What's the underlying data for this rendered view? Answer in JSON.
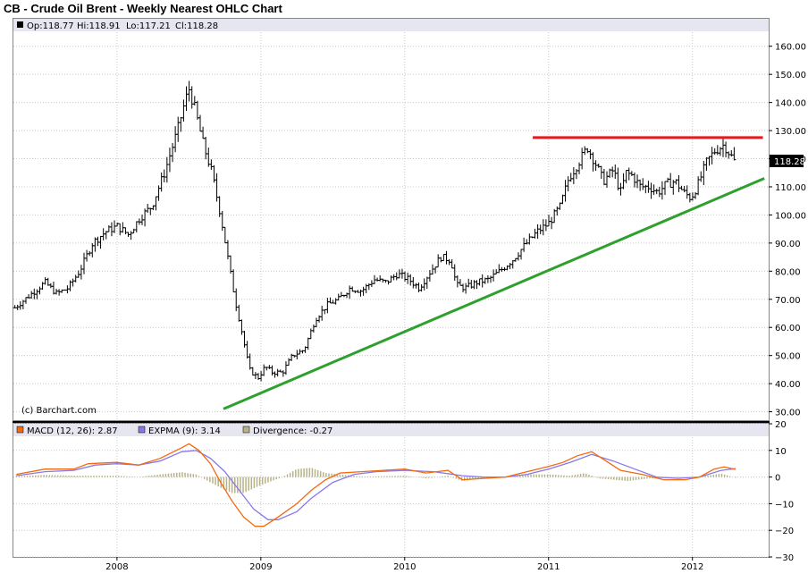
{
  "title": "CB - Crude Oil Brent - Weekly Nearest OHLC Chart",
  "colors": {
    "price_bar": "#000000",
    "resistance": "#e8191d",
    "support": "#2ea02e",
    "macd": "#f26a10",
    "expma": "#8878e8",
    "divergence": "#b7b287",
    "legend_bg": "#e6e6f0",
    "grid": "#c8c8c8"
  },
  "chart_data": [
    {
      "type": "ohlc",
      "legend": {
        "op_label": "Op:118.77",
        "hi_label": "Hi:118.91",
        "lo_label": "Lo:117.21",
        "cl_label": "Cl:118.28"
      },
      "last_price_label": "118.28",
      "watermark": "(c) Barchart.com",
      "x_tick_labels": [
        "2008",
        "2009",
        "2010",
        "2011",
        "2012"
      ],
      "x_range": [
        2007.28,
        2012.53
      ],
      "y_range": [
        27,
        165
      ],
      "y_tick_labels": [
        "160.00",
        "150.00",
        "140.00",
        "130.00",
        "120.00",
        "110.00",
        "100.00",
        "90.00",
        "80.00",
        "70.00",
        "60.00",
        "50.00",
        "40.00",
        "30.00"
      ],
      "y_tick_values": [
        160,
        150,
        140,
        130,
        120,
        110,
        100,
        90,
        80,
        70,
        60,
        50,
        40,
        30
      ],
      "close_series": [
        [
          2007.29,
          67
        ],
        [
          2007.36,
          70
        ],
        [
          2007.43,
          73
        ],
        [
          2007.5,
          76
        ],
        [
          2007.58,
          72
        ],
        [
          2007.66,
          74
        ],
        [
          2007.74,
          80
        ],
        [
          2007.83,
          90
        ],
        [
          2007.92,
          94
        ],
        [
          2008.0,
          96
        ],
        [
          2008.08,
          93
        ],
        [
          2008.16,
          99
        ],
        [
          2008.24,
          103
        ],
        [
          2008.33,
          115
        ],
        [
          2008.42,
          130
        ],
        [
          2008.46,
          138
        ],
        [
          2008.5,
          145
        ],
        [
          2008.54,
          138
        ],
        [
          2008.6,
          125
        ],
        [
          2008.66,
          115
        ],
        [
          2008.72,
          100
        ],
        [
          2008.76,
          88
        ],
        [
          2008.82,
          70
        ],
        [
          2008.87,
          58
        ],
        [
          2008.92,
          45
        ],
        [
          2008.98,
          42
        ],
        [
          2009.03,
          46
        ],
        [
          2009.08,
          44
        ],
        [
          2009.15,
          44
        ],
        [
          2009.22,
          50
        ],
        [
          2009.3,
          52
        ],
        [
          2009.38,
          63
        ],
        [
          2009.46,
          68
        ],
        [
          2009.54,
          70
        ],
        [
          2009.62,
          74
        ],
        [
          2009.7,
          73
        ],
        [
          2009.79,
          77
        ],
        [
          2009.87,
          76
        ],
        [
          2009.95,
          79
        ],
        [
          2010.03,
          77
        ],
        [
          2010.1,
          74
        ],
        [
          2010.18,
          80
        ],
        [
          2010.25,
          85
        ],
        [
          2010.32,
          84
        ],
        [
          2010.36,
          75
        ],
        [
          2010.42,
          74
        ],
        [
          2010.5,
          76
        ],
        [
          2010.58,
          77
        ],
        [
          2010.66,
          80
        ],
        [
          2010.75,
          84
        ],
        [
          2010.83,
          89
        ],
        [
          2010.92,
          94
        ],
        [
          2011.0,
          97
        ],
        [
          2011.08,
          103
        ],
        [
          2011.14,
          113
        ],
        [
          2011.2,
          118
        ],
        [
          2011.27,
          124
        ],
        [
          2011.33,
          118
        ],
        [
          2011.38,
          112
        ],
        [
          2011.45,
          116
        ],
        [
          2011.5,
          108
        ],
        [
          2011.54,
          115
        ],
        [
          2011.58,
          114
        ],
        [
          2011.64,
          110
        ],
        [
          2011.7,
          110
        ],
        [
          2011.76,
          108
        ],
        [
          2011.82,
          111
        ],
        [
          2011.88,
          112
        ],
        [
          2011.94,
          108
        ],
        [
          2011.99,
          106
        ],
        [
          2012.04,
          111
        ],
        [
          2012.1,
          119
        ],
        [
          2012.16,
          123
        ],
        [
          2012.22,
          125
        ],
        [
          2012.28,
          120
        ],
        [
          2012.3,
          118.28
        ]
      ],
      "resistance_line": {
        "price": 127.5,
        "from": 2010.89,
        "to": 2012.49
      },
      "support_line": {
        "from": [
          2008.74,
          31
        ],
        "to": [
          2012.5,
          113
        ]
      }
    },
    {
      "type": "line",
      "legend": {
        "macd_label": "MACD (12, 26): 2.87",
        "expma_label": "EXPMA (9): 3.14",
        "div_label": "Divergence: -0.27"
      },
      "y_range": [
        -30,
        20
      ],
      "y_tick_labels": [
        "20",
        "10",
        "0",
        "−10",
        "−20",
        "−30"
      ],
      "y_tick_values": [
        20,
        10,
        0,
        -10,
        -20,
        -30
      ],
      "series": [
        {
          "key": "macd",
          "values": [
            [
              2007.3,
              1
            ],
            [
              2007.5,
              3
            ],
            [
              2007.7,
              3
            ],
            [
              2007.8,
              5
            ],
            [
              2008.0,
              5.5
            ],
            [
              2008.15,
              4.5
            ],
            [
              2008.3,
              7
            ],
            [
              2008.45,
              11
            ],
            [
              2008.5,
              12.5
            ],
            [
              2008.57,
              10
            ],
            [
              2008.65,
              5
            ],
            [
              2008.72,
              -2
            ],
            [
              2008.8,
              -9
            ],
            [
              2008.88,
              -15
            ],
            [
              2008.96,
              -18.5
            ],
            [
              2009.02,
              -18.5
            ],
            [
              2009.12,
              -15
            ],
            [
              2009.25,
              -10
            ],
            [
              2009.35,
              -5
            ],
            [
              2009.45,
              -1
            ],
            [
              2009.55,
              1.5
            ],
            [
              2009.7,
              2
            ],
            [
              2009.85,
              2.5
            ],
            [
              2010.0,
              3
            ],
            [
              2010.15,
              1.5
            ],
            [
              2010.3,
              2.5
            ],
            [
              2010.4,
              -1
            ],
            [
              2010.55,
              -0.5
            ],
            [
              2010.7,
              0
            ],
            [
              2010.85,
              2
            ],
            [
              2011.0,
              4
            ],
            [
              2011.1,
              5.5
            ],
            [
              2011.2,
              8
            ],
            [
              2011.3,
              9.5
            ],
            [
              2011.4,
              6
            ],
            [
              2011.5,
              2.5
            ],
            [
              2011.65,
              1
            ],
            [
              2011.8,
              -1
            ],
            [
              2011.95,
              -1
            ],
            [
              2012.05,
              0
            ],
            [
              2012.15,
              3
            ],
            [
              2012.22,
              3.8
            ],
            [
              2012.3,
              2.87
            ]
          ]
        },
        {
          "key": "expma",
          "values": [
            [
              2007.3,
              0.5
            ],
            [
              2007.5,
              2
            ],
            [
              2007.7,
              2.5
            ],
            [
              2007.85,
              4.5
            ],
            [
              2008.0,
              5
            ],
            [
              2008.15,
              4.5
            ],
            [
              2008.3,
              6
            ],
            [
              2008.45,
              9.5
            ],
            [
              2008.55,
              10
            ],
            [
              2008.65,
              7
            ],
            [
              2008.75,
              2
            ],
            [
              2008.85,
              -5
            ],
            [
              2008.95,
              -12
            ],
            [
              2009.05,
              -16
            ],
            [
              2009.12,
              -16
            ],
            [
              2009.25,
              -13
            ],
            [
              2009.35,
              -8
            ],
            [
              2009.5,
              -2
            ],
            [
              2009.65,
              1
            ],
            [
              2009.8,
              2
            ],
            [
              2010.0,
              2.5
            ],
            [
              2010.2,
              2
            ],
            [
              2010.4,
              0.5
            ],
            [
              2010.55,
              0
            ],
            [
              2010.7,
              0
            ],
            [
              2010.85,
              1
            ],
            [
              2011.0,
              3
            ],
            [
              2011.15,
              5.5
            ],
            [
              2011.3,
              8.5
            ],
            [
              2011.45,
              6
            ],
            [
              2011.6,
              3
            ],
            [
              2011.75,
              0
            ],
            [
              2011.9,
              -0.5
            ],
            [
              2012.05,
              0
            ],
            [
              2012.2,
              2.5
            ],
            [
              2012.3,
              3.14
            ]
          ]
        },
        {
          "key": "divergence",
          "values": [
            [
              2007.3,
              0.3
            ],
            [
              2007.5,
              0.8
            ],
            [
              2007.7,
              0.5
            ],
            [
              2007.85,
              0.5
            ],
            [
              2008.0,
              0.5
            ],
            [
              2008.15,
              0
            ],
            [
              2008.3,
              1
            ],
            [
              2008.45,
              1.8
            ],
            [
              2008.55,
              1
            ],
            [
              2008.65,
              -2
            ],
            [
              2008.72,
              -4
            ],
            [
              2008.8,
              -6
            ],
            [
              2008.88,
              -6
            ],
            [
              2008.96,
              -4
            ],
            [
              2009.05,
              -2
            ],
            [
              2009.15,
              0
            ],
            [
              2009.25,
              3
            ],
            [
              2009.35,
              3.5
            ],
            [
              2009.45,
              1.5
            ],
            [
              2009.55,
              1
            ],
            [
              2009.7,
              0.2
            ],
            [
              2009.85,
              0.3
            ],
            [
              2010.0,
              0.5
            ],
            [
              2010.15,
              -0.5
            ],
            [
              2010.3,
              0.5
            ],
            [
              2010.4,
              -1.5
            ],
            [
              2010.55,
              -0.5
            ],
            [
              2010.7,
              0
            ],
            [
              2010.85,
              1
            ],
            [
              2011.0,
              1
            ],
            [
              2011.15,
              0.5
            ],
            [
              2011.25,
              1.5
            ],
            [
              2011.35,
              -0.5
            ],
            [
              2011.45,
              -1
            ],
            [
              2011.55,
              -1.5
            ],
            [
              2011.7,
              -0.5
            ],
            [
              2011.85,
              -0.5
            ],
            [
              2012.0,
              0
            ],
            [
              2012.1,
              0.5
            ],
            [
              2012.2,
              1.3
            ],
            [
              2012.3,
              -0.27
            ]
          ]
        }
      ]
    }
  ]
}
